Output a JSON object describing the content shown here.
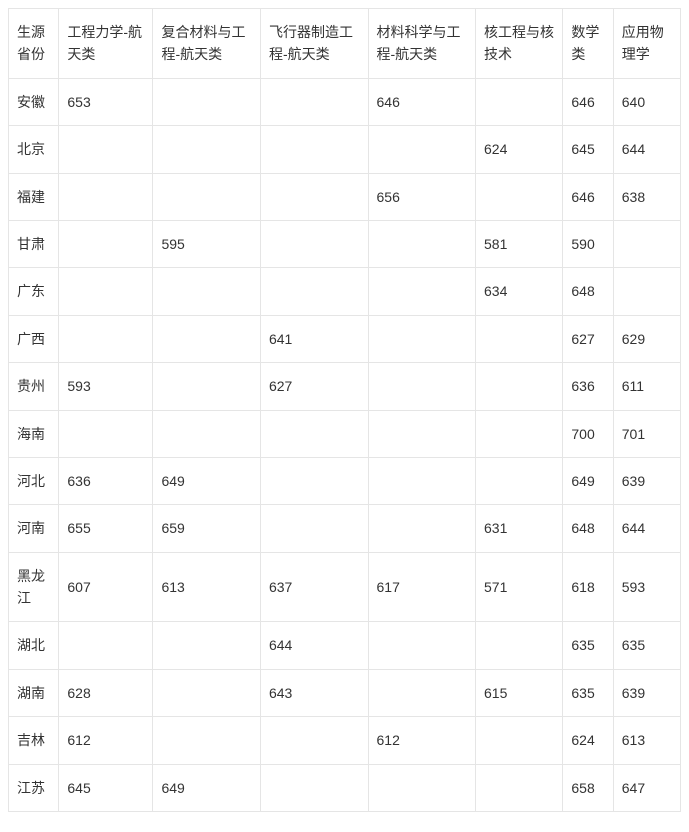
{
  "table": {
    "columns": [
      "生源省份",
      "工程力学-航天类",
      "复合材料与工程-航天类",
      "飞行器制造工程-航天类",
      "材料科学与工程-航天类",
      "核工程与核技术",
      "数学类",
      "应用物理学"
    ],
    "rows": [
      {
        "province": "安徽",
        "c1": "653",
        "c2": "",
        "c3": "",
        "c4": "646",
        "c5": "",
        "c6": "646",
        "c7": "640"
      },
      {
        "province": "北京",
        "c1": "",
        "c2": "",
        "c3": "",
        "c4": "",
        "c5": "624",
        "c6": "645",
        "c7": "644"
      },
      {
        "province": "福建",
        "c1": "",
        "c2": "",
        "c3": "",
        "c4": "656",
        "c5": "",
        "c6": "646",
        "c7": "638"
      },
      {
        "province": "甘肃",
        "c1": "",
        "c2": "595",
        "c3": "",
        "c4": "",
        "c5": "581",
        "c6": "590",
        "c7": ""
      },
      {
        "province": "广东",
        "c1": "",
        "c2": "",
        "c3": "",
        "c4": "",
        "c5": "634",
        "c6": "648",
        "c7": ""
      },
      {
        "province": "广西",
        "c1": "",
        "c2": "",
        "c3": "641",
        "c4": "",
        "c5": "",
        "c6": "627",
        "c7": "629"
      },
      {
        "province": "贵州",
        "c1": "593",
        "c2": "",
        "c3": "627",
        "c4": "",
        "c5": "",
        "c6": "636",
        "c7": "611"
      },
      {
        "province": "海南",
        "c1": "",
        "c2": "",
        "c3": "",
        "c4": "",
        "c5": "",
        "c6": "700",
        "c7": "701"
      },
      {
        "province": "河北",
        "c1": "636",
        "c2": "649",
        "c3": "",
        "c4": "",
        "c5": "",
        "c6": "649",
        "c7": "639"
      },
      {
        "province": "河南",
        "c1": "655",
        "c2": "659",
        "c3": "",
        "c4": "",
        "c5": "631",
        "c6": "648",
        "c7": "644"
      },
      {
        "province": "黑龙江",
        "c1": "607",
        "c2": "613",
        "c3": "637",
        "c4": "617",
        "c5": "571",
        "c6": "618",
        "c7": "593"
      },
      {
        "province": "湖北",
        "c1": "",
        "c2": "",
        "c3": "644",
        "c4": "",
        "c5": "",
        "c6": "635",
        "c7": "635"
      },
      {
        "province": "湖南",
        "c1": "628",
        "c2": "",
        "c3": "643",
        "c4": "",
        "c5": "615",
        "c6": "635",
        "c7": "639"
      },
      {
        "province": "吉林",
        "c1": "612",
        "c2": "",
        "c3": "",
        "c4": "612",
        "c5": "",
        "c6": "624",
        "c7": "613"
      },
      {
        "province": "江苏",
        "c1": "645",
        "c2": "649",
        "c3": "",
        "c4": "",
        "c5": "",
        "c6": "658",
        "c7": "647"
      }
    ],
    "text_color": "#333333",
    "border_color": "#e5e5e5",
    "background_color": "#ffffff",
    "font_size": 14
  }
}
